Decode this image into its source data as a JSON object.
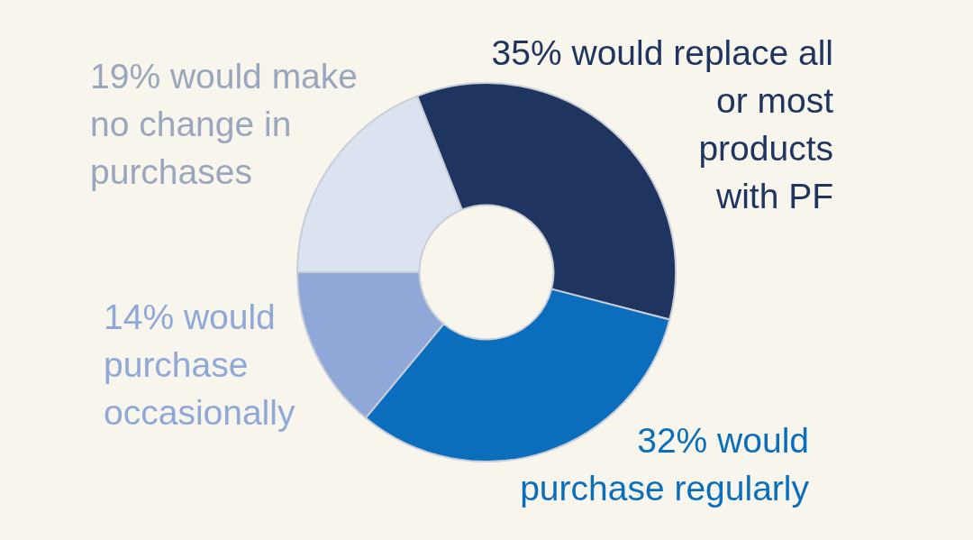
{
  "chart_data": {
    "type": "donut",
    "categories": [
      "would replace all or most products with PF",
      "would purchase regularly",
      "would purchase occasionally",
      "would make no change in purchases"
    ],
    "values": [
      35,
      32,
      14,
      19
    ],
    "value_labels": [
      "35%",
      "32%",
      "14%",
      "19%"
    ],
    "colors": [
      "#1f3560",
      "#0a6ebd",
      "#8fa8d8",
      "#dce3f0"
    ],
    "legend": false
  }
}
